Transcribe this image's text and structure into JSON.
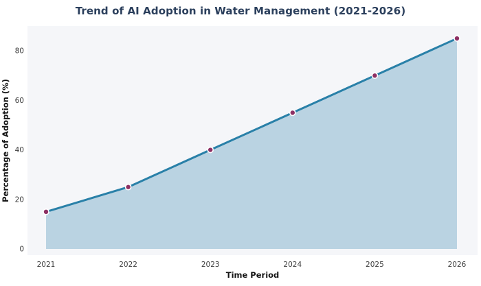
{
  "title": "Trend of AI Adoption in Water Management (2021-2026)",
  "chart_data": {
    "type": "area",
    "title": "Trend of AI Adoption in Water Management (2021-2026)",
    "categories": [
      "2021",
      "2022",
      "2023",
      "2024",
      "2025",
      "2026"
    ],
    "values": [
      15,
      25,
      40,
      55,
      70,
      85
    ],
    "xlabel": "Time Period",
    "ylabel": "Percentage of Adoption (%)",
    "yticks": [
      0,
      20,
      40,
      60,
      80
    ],
    "ylim": [
      -2.5,
      90
    ],
    "grid": false,
    "legend": false,
    "colors": {
      "line": "#2980a8",
      "area_fill": "#bad3e2",
      "marker": "#8d2f63",
      "marker_edge": "#ffffff",
      "plot_background": "#f5f6f9",
      "title_color": "#2b3f5c",
      "axis_label_color": "#161616",
      "tick_color": "#3b3b3b"
    }
  }
}
